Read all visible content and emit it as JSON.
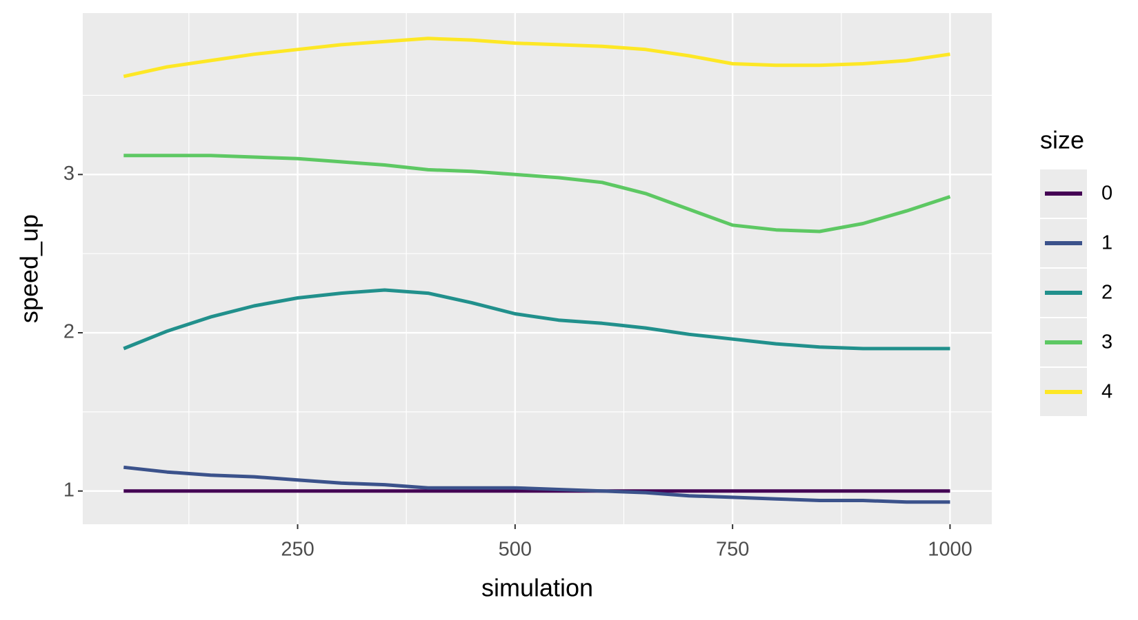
{
  "chart_data": {
    "type": "line",
    "x_label": "simulation",
    "y_label": "speed_up",
    "legend_title": "size",
    "x": [
      50,
      100,
      150,
      200,
      250,
      300,
      350,
      400,
      450,
      500,
      550,
      600,
      650,
      700,
      750,
      800,
      850,
      900,
      950,
      1000
    ],
    "series": [
      {
        "name": "0",
        "color": "#440154",
        "values": [
          1,
          1,
          1,
          1,
          1,
          1,
          1,
          1,
          1,
          1,
          1,
          1,
          1,
          1,
          1,
          1,
          1,
          1,
          1,
          1
        ]
      },
      {
        "name": "1",
        "color": "#3B528B",
        "values": [
          1.15,
          1.12,
          1.1,
          1.09,
          1.07,
          1.05,
          1.04,
          1.02,
          1.02,
          1.02,
          1.01,
          1.0,
          0.99,
          0.97,
          0.96,
          0.95,
          0.94,
          0.94,
          0.93,
          0.93
        ]
      },
      {
        "name": "2",
        "color": "#21908C",
        "values": [
          1.9,
          2.01,
          2.1,
          2.17,
          2.22,
          2.25,
          2.27,
          2.25,
          2.19,
          2.12,
          2.08,
          2.06,
          2.03,
          1.99,
          1.96,
          1.93,
          1.91,
          1.9,
          1.9,
          1.9
        ]
      },
      {
        "name": "3",
        "color": "#5DC863",
        "values": [
          3.12,
          3.12,
          3.12,
          3.11,
          3.1,
          3.08,
          3.06,
          3.03,
          3.02,
          3.0,
          2.98,
          2.95,
          2.88,
          2.78,
          2.68,
          2.65,
          2.64,
          2.69,
          2.77,
          2.86
        ]
      },
      {
        "name": "4",
        "color": "#FDE725",
        "values": [
          3.62,
          3.68,
          3.72,
          3.76,
          3.79,
          3.82,
          3.84,
          3.86,
          3.85,
          3.83,
          3.82,
          3.81,
          3.79,
          3.75,
          3.7,
          3.69,
          3.69,
          3.7,
          3.72,
          3.76
        ]
      }
    ],
    "xlim": [
      3,
      1048
    ],
    "xticks": [
      250,
      500,
      750,
      1000
    ],
    "ylim": [
      0.79,
      4.02
    ],
    "yticks": [
      1,
      2,
      3
    ],
    "grid": true
  }
}
